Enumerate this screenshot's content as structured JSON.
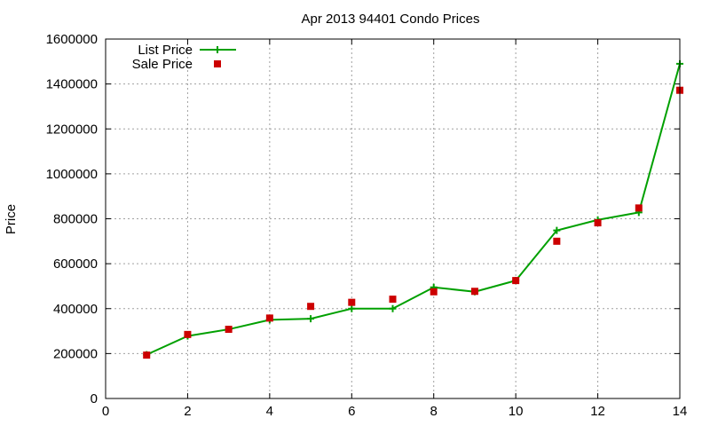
{
  "chart_data": {
    "type": "line",
    "title": "Apr 2013 94401 Condo Prices",
    "xlabel": "",
    "ylabel": "Price",
    "xlim": [
      0,
      14
    ],
    "ylim": [
      0,
      1600000
    ],
    "xticks": [
      0,
      2,
      4,
      6,
      8,
      10,
      12,
      14
    ],
    "yticks": [
      0,
      200000,
      400000,
      600000,
      800000,
      1000000,
      1200000,
      1400000,
      1600000
    ],
    "grid": true,
    "legend_position": "top-left",
    "series": [
      {
        "name": "List Price",
        "style": "line-with-plus-markers",
        "color": "#00a000",
        "x": [
          1,
          2,
          3,
          4,
          5,
          6,
          7,
          8,
          9,
          10,
          11,
          12,
          13,
          14
        ],
        "y": [
          195000,
          278000,
          308000,
          350000,
          355000,
          400000,
          400000,
          495000,
          475000,
          525000,
          748000,
          795000,
          828000,
          1490000
        ]
      },
      {
        "name": "Sale Price",
        "style": "square-markers",
        "color": "#cc0000",
        "x": [
          1,
          2,
          3,
          4,
          5,
          6,
          7,
          8,
          9,
          10,
          11,
          12,
          13,
          14
        ],
        "y": [
          193000,
          285000,
          308000,
          358000,
          410000,
          428000,
          442000,
          475000,
          477000,
          525000,
          700000,
          782000,
          848000,
          1372000
        ]
      }
    ]
  }
}
